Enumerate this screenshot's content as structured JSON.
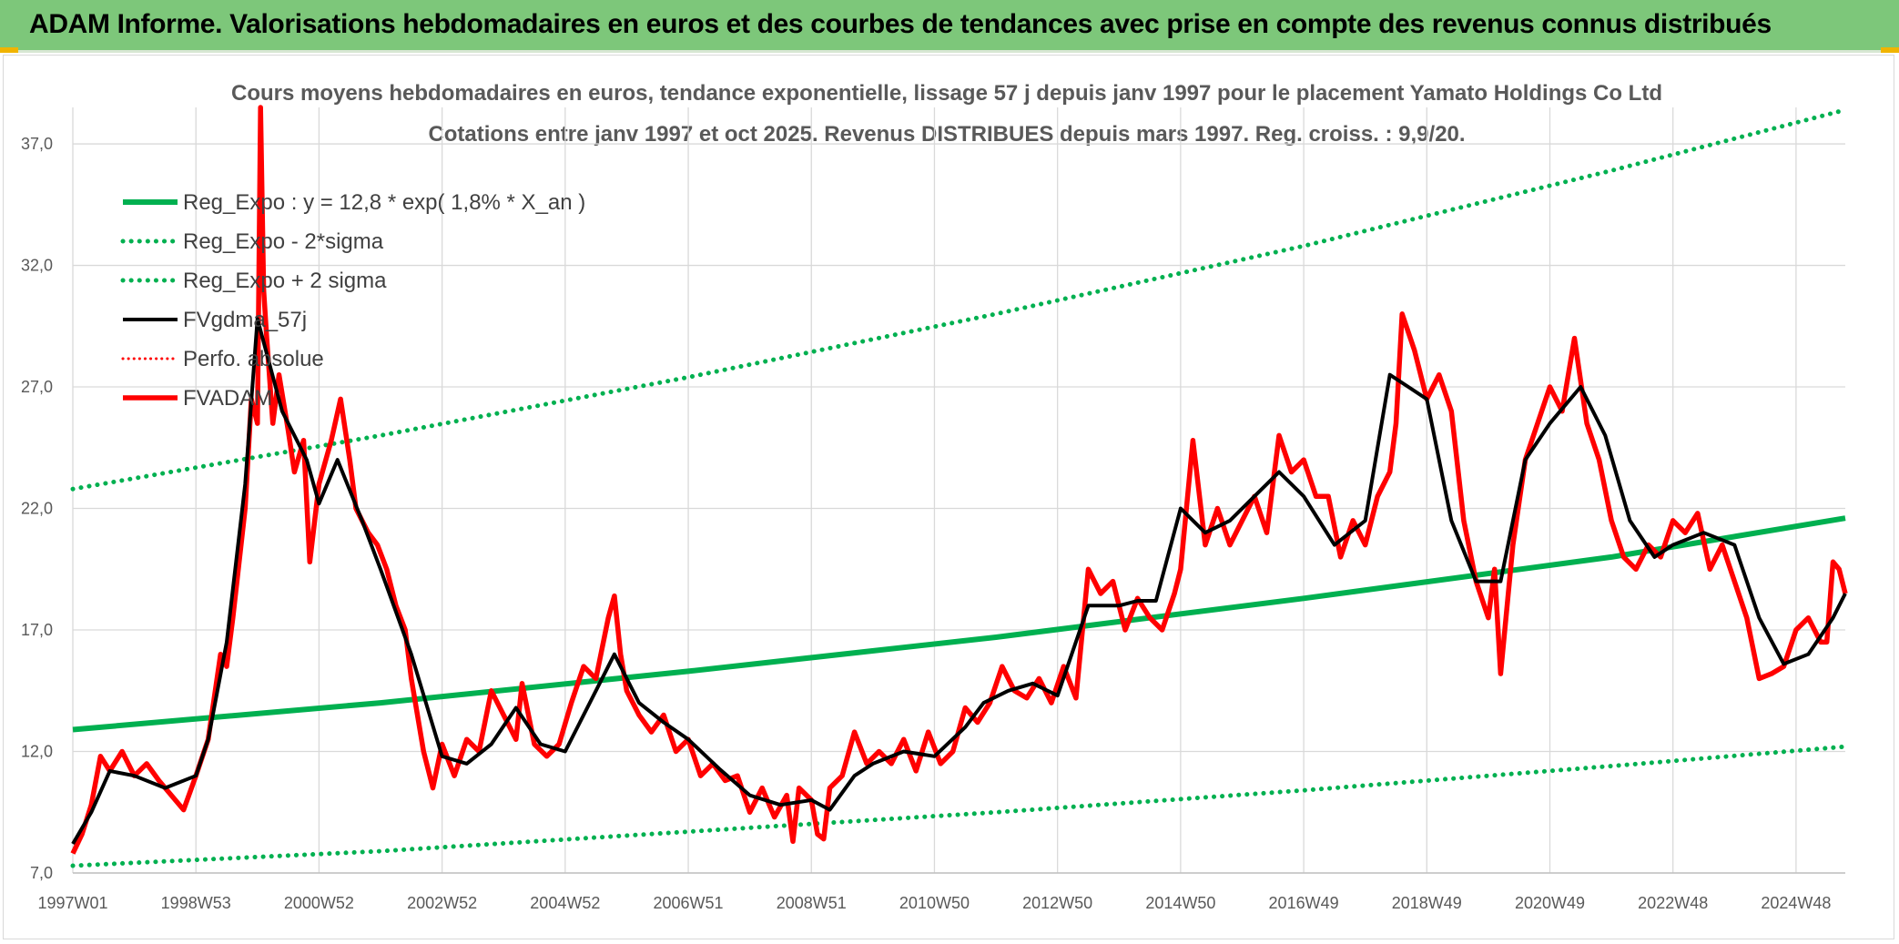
{
  "header": {
    "title": "ADAM Informe. Valorisations hebdomadaires en euros et des courbes de tendances avec prise en compte des revenus connus distribués"
  },
  "colors": {
    "banner": "#7dc77a",
    "trend": "#00b050",
    "smoothed": "#000000",
    "price": "#ff0000",
    "grid": "#d9d9d9"
  },
  "chart_data": {
    "type": "line",
    "title": "Cours moyens hebdomadaires en euros, tendance exponentielle, lissage 57 j depuis janv 1997 pour le placement Yamato Holdings Co Ltd",
    "subtitle": "Cotations entre janv 1997 et oct 2025. Revenus DISTRIBUES depuis mars 1997. Reg. croiss. : 9,9/20.",
    "xlabel": "",
    "ylabel": "",
    "ylim": [
      7.0,
      38.5
    ],
    "xlim": [
      1997.0,
      2025.8
    ],
    "yticks": [
      "7,0",
      "12,0",
      "17,0",
      "22,0",
      "27,0",
      "32,0",
      "37,0"
    ],
    "ytick_values": [
      7,
      12,
      17,
      22,
      27,
      32,
      37
    ],
    "xticks": [
      "1997W01",
      "1998W53",
      "2000W52",
      "2002W52",
      "2004W52",
      "2006W51",
      "2008W51",
      "2010W50",
      "2012W50",
      "2014W50",
      "2016W49",
      "2018W49",
      "2020W49",
      "2022W48",
      "2024W48"
    ],
    "xtick_values": [
      1997.0,
      1999.0,
      2001.0,
      2003.0,
      2005.0,
      2007.0,
      2009.0,
      2011.0,
      2013.0,
      2015.0,
      2017.0,
      2019.0,
      2021.0,
      2023.0,
      2025.0
    ],
    "grid": true,
    "legend_position": "top-left",
    "series": [
      {
        "name": "Reg_Expo : y = 12,8 * exp( 1,8% *  X_an )",
        "style": "solid",
        "color": "#00b050",
        "x": [
          1997.0,
          2002.0,
          2007.0,
          2012.0,
          2017.0,
          2022.0,
          2025.8
        ],
        "y": [
          12.9,
          14.0,
          15.3,
          16.7,
          18.3,
          20.0,
          21.6
        ]
      },
      {
        "name": "Reg_Expo - 2*sigma",
        "style": "dotted",
        "color": "#00b050",
        "x": [
          1997.0,
          2002.0,
          2007.0,
          2012.0,
          2017.0,
          2022.0,
          2025.8
        ],
        "y": [
          7.3,
          7.9,
          8.7,
          9.5,
          10.4,
          11.4,
          12.2
        ]
      },
      {
        "name": "Reg_Expo + 2 sigma",
        "style": "dotted",
        "color": "#00b050",
        "x": [
          1997.0,
          2002.0,
          2007.0,
          2012.0,
          2017.0,
          2022.0,
          2025.8
        ],
        "y": [
          22.8,
          25.0,
          27.4,
          30.0,
          32.8,
          35.9,
          38.4
        ]
      },
      {
        "name": "FVgdma_57j",
        "style": "solid",
        "color": "#000000",
        "x": [
          1997.0,
          1997.3,
          1997.6,
          1998.0,
          1998.5,
          1999.0,
          1999.2,
          1999.5,
          1999.8,
          2000.0,
          2000.4,
          2000.8,
          2001.0,
          2001.3,
          2001.7,
          2002.0,
          2002.5,
          2003.0,
          2003.4,
          2003.8,
          2004.2,
          2004.6,
          2005.0,
          2005.5,
          2005.8,
          2006.2,
          2006.6,
          2007.0,
          2007.5,
          2008.0,
          2008.5,
          2009.0,
          2009.3,
          2009.7,
          2010.0,
          2010.5,
          2011.0,
          2011.5,
          2011.8,
          2012.2,
          2012.6,
          2013.0,
          2013.5,
          2014.0,
          2014.3,
          2014.6,
          2015.0,
          2015.4,
          2015.8,
          2016.2,
          2016.6,
          2017.0,
          2017.5,
          2018.0,
          2018.4,
          2018.7,
          2019.0,
          2019.4,
          2019.8,
          2020.2,
          2020.6,
          2021.0,
          2021.5,
          2021.9,
          2022.3,
          2022.7,
          2023.0,
          2023.5,
          2024.0,
          2024.4,
          2024.8,
          2025.2,
          2025.6,
          2025.8
        ],
        "y": [
          8.2,
          9.5,
          11.2,
          11.0,
          10.5,
          11.0,
          12.5,
          16.5,
          23.0,
          29.8,
          26.0,
          24.0,
          22.2,
          24.0,
          21.5,
          19.5,
          16.0,
          11.8,
          11.5,
          12.3,
          13.8,
          12.3,
          12.0,
          14.5,
          16.0,
          14.0,
          13.2,
          12.5,
          11.3,
          10.2,
          9.8,
          10.0,
          9.6,
          11.0,
          11.5,
          12.0,
          11.8,
          13.0,
          14.0,
          14.5,
          14.8,
          14.3,
          18.0,
          18.0,
          18.2,
          18.2,
          22.0,
          21.0,
          21.5,
          22.5,
          23.5,
          22.5,
          20.5,
          21.5,
          27.5,
          27.0,
          26.5,
          21.5,
          19.0,
          19.0,
          24.0,
          25.5,
          27.0,
          25.0,
          21.5,
          20.0,
          20.5,
          21.0,
          20.5,
          17.5,
          15.6,
          16.0,
          17.5,
          18.5
        ]
      },
      {
        "name": "Perfo. absolue",
        "style": "dotted",
        "color": "#ff0000",
        "x": [],
        "y": []
      },
      {
        "name": "FVADAM",
        "style": "solid",
        "color": "#ff0000",
        "x": [
          1997.0,
          1997.15,
          1997.3,
          1997.45,
          1997.6,
          1997.8,
          1998.0,
          1998.2,
          1998.4,
          1998.6,
          1998.8,
          1999.0,
          1999.2,
          1999.4,
          1999.5,
          1999.6,
          1999.8,
          1999.9,
          2000.0,
          2000.05,
          2000.1,
          2000.15,
          2000.25,
          2000.35,
          2000.5,
          2000.6,
          2000.75,
          2000.85,
          2001.0,
          2001.2,
          2001.35,
          2001.5,
          2001.6,
          2001.8,
          2001.95,
          2002.1,
          2002.25,
          2002.4,
          2002.5,
          2002.7,
          2002.85,
          2003.0,
          2003.2,
          2003.4,
          2003.6,
          2003.8,
          2004.0,
          2004.2,
          2004.3,
          2004.5,
          2004.7,
          2004.9,
          2005.1,
          2005.3,
          2005.5,
          2005.7,
          2005.8,
          2005.9,
          2006.0,
          2006.2,
          2006.4,
          2006.6,
          2006.8,
          2007.0,
          2007.2,
          2007.4,
          2007.6,
          2007.8,
          2008.0,
          2008.2,
          2008.4,
          2008.6,
          2008.7,
          2008.8,
          2009.0,
          2009.1,
          2009.2,
          2009.3,
          2009.5,
          2009.7,
          2009.9,
          2010.1,
          2010.3,
          2010.5,
          2010.7,
          2010.9,
          2011.1,
          2011.3,
          2011.5,
          2011.7,
          2011.9,
          2012.1,
          2012.3,
          2012.5,
          2012.7,
          2012.9,
          2013.1,
          2013.3,
          2013.5,
          2013.7,
          2013.9,
          2014.1,
          2014.3,
          2014.5,
          2014.7,
          2014.9,
          2015.0,
          2015.2,
          2015.4,
          2015.6,
          2015.8,
          2016.0,
          2016.2,
          2016.4,
          2016.6,
          2016.8,
          2017.0,
          2017.2,
          2017.4,
          2017.6,
          2017.8,
          2018.0,
          2018.2,
          2018.4,
          2018.5,
          2018.6,
          2018.8,
          2019.0,
          2019.2,
          2019.4,
          2019.6,
          2019.8,
          2020.0,
          2020.1,
          2020.2,
          2020.4,
          2020.6,
          2020.8,
          2021.0,
          2021.2,
          2021.4,
          2021.6,
          2021.8,
          2022.0,
          2022.2,
          2022.4,
          2022.6,
          2022.8,
          2023.0,
          2023.2,
          2023.4,
          2023.6,
          2023.8,
          2024.0,
          2024.2,
          2024.4,
          2024.6,
          2024.8,
          2025.0,
          2025.2,
          2025.4,
          2025.5,
          2025.6,
          2025.7,
          2025.8
        ],
        "y": [
          7.8,
          8.6,
          9.8,
          11.8,
          11.2,
          12.0,
          11.0,
          11.5,
          10.8,
          10.2,
          9.6,
          11.0,
          12.5,
          16.0,
          15.5,
          17.5,
          22.0,
          26.5,
          25.5,
          38.5,
          31.0,
          29.0,
          25.5,
          27.5,
          25.2,
          23.5,
          24.8,
          19.8,
          23.0,
          24.8,
          26.5,
          24.0,
          22.0,
          21.0,
          20.5,
          19.5,
          18.0,
          17.0,
          15.0,
          12.0,
          10.5,
          12.3,
          11.0,
          12.5,
          12.0,
          14.5,
          13.5,
          12.5,
          14.8,
          12.3,
          11.8,
          12.3,
          14.0,
          15.5,
          15.0,
          17.5,
          18.4,
          16.0,
          14.5,
          13.5,
          12.8,
          13.5,
          12.0,
          12.5,
          11.0,
          11.5,
          10.8,
          11.0,
          9.5,
          10.5,
          9.3,
          10.2,
          8.3,
          10.5,
          10.0,
          8.6,
          8.4,
          10.5,
          11.0,
          12.8,
          11.5,
          12.0,
          11.5,
          12.5,
          11.2,
          12.8,
          11.5,
          12.0,
          13.8,
          13.2,
          14.0,
          15.5,
          14.5,
          14.2,
          15.0,
          14.0,
          15.5,
          14.2,
          19.5,
          18.5,
          19.0,
          17.0,
          18.3,
          17.5,
          17.0,
          18.5,
          19.5,
          24.8,
          20.5,
          22.0,
          20.5,
          21.5,
          22.5,
          21.0,
          25.0,
          23.5,
          24.0,
          22.5,
          22.5,
          20.0,
          21.5,
          20.5,
          22.5,
          23.5,
          25.5,
          30.0,
          28.5,
          26.5,
          27.5,
          26.0,
          21.5,
          19.0,
          17.5,
          19.5,
          15.2,
          20.5,
          24.0,
          25.5,
          27.0,
          26.0,
          29.0,
          25.5,
          24.0,
          21.5,
          20.0,
          19.5,
          20.5,
          20.0,
          21.5,
          21.0,
          21.8,
          19.5,
          20.5,
          19.0,
          17.5,
          15.0,
          15.2,
          15.5,
          17.0,
          17.5,
          16.5,
          16.5,
          19.8,
          19.5,
          18.5
        ]
      }
    ]
  }
}
